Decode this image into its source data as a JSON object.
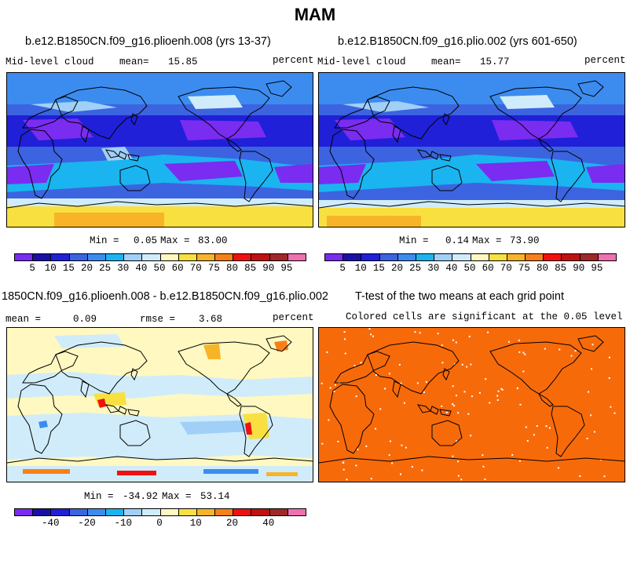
{
  "title": "MAM",
  "panels": [
    {
      "title": "b.e12.B1850CN.f09_g16.plioenh.008 (yrs 13-37)",
      "left_label": "Mid-level cloud",
      "mean_label": "mean=",
      "mean_value": "15.85",
      "units": "percent",
      "min_label": "Min =",
      "min_value": "0.05",
      "max_label": "Max =",
      "max_value": "83.00"
    },
    {
      "title": "b.e12.B1850CN.f09_g16.plio.002 (yrs 601-650)",
      "left_label": "Mid-level cloud",
      "mean_label": "mean=",
      "mean_value": "15.77",
      "units": "percent",
      "min_label": "Min =",
      "min_value": "0.14",
      "max_label": "Max =",
      "max_value": "73.90"
    },
    {
      "title": "1850CN.f09_g16.plioenh.008 - b.e12.B1850CN.f09_g16.plio.002",
      "mean_label": "mean =",
      "mean_value": "0.09",
      "rmse_label": "rmse =",
      "rmse_value": "3.68",
      "units": "percent",
      "min_label": "Min =",
      "min_value": "-34.92",
      "max_label": "Max =",
      "max_value": "53.14"
    },
    {
      "title": "T-test of the two means at each grid point",
      "subtitle": "Colored cells are significant at the 0.05 level"
    }
  ],
  "colorbar_abs": {
    "colors": [
      "#7a2cf0",
      "#1a10a8",
      "#2020d8",
      "#3c64e0",
      "#3c8cf0",
      "#1ab4f0",
      "#a0d0f8",
      "#d0ecfa",
      "#fff8c0",
      "#f8e040",
      "#f8b428",
      "#f88018",
      "#f01010",
      "#c01010",
      "#a02828",
      "#f070b0"
    ],
    "ticks": [
      "5",
      "10",
      "15",
      "20",
      "25",
      "30",
      "40",
      "50",
      "60",
      "70",
      "75",
      "80",
      "85",
      "90",
      "95"
    ]
  },
  "colorbar_diff": {
    "colors": [
      "#7a2cf0",
      "#1a10a8",
      "#2020d8",
      "#3c64e0",
      "#3c8cf0",
      "#1ab4f0",
      "#a0d0f8",
      "#d0ecfa",
      "#fff8c0",
      "#f8e040",
      "#f8b428",
      "#f88018",
      "#f01010",
      "#c01010",
      "#a02828",
      "#f070b0"
    ],
    "ticks": [
      "-40",
      "-20",
      "-10",
      "0",
      "10",
      "20",
      "40"
    ],
    "tick_positions": [
      2,
      4,
      6,
      8,
      10,
      12,
      14
    ]
  },
  "chart_data": [
    {
      "type": "heatmap",
      "title": "b.e12.B1850CN.f09_g16.plioenh.008 (yrs 13-37)",
      "variable": "Mid-level cloud",
      "units": "percent",
      "mean": 15.85,
      "min": 0.05,
      "max": 83.0,
      "contour_levels": [
        5,
        10,
        15,
        20,
        25,
        30,
        40,
        50,
        60,
        70,
        75,
        80,
        85,
        90,
        95
      ]
    },
    {
      "type": "heatmap",
      "title": "b.e12.B1850CN.f09_g16.plio.002 (yrs 601-650)",
      "variable": "Mid-level cloud",
      "units": "percent",
      "mean": 15.77,
      "min": 0.14,
      "max": 73.9,
      "contour_levels": [
        5,
        10,
        15,
        20,
        25,
        30,
        40,
        50,
        60,
        70,
        75,
        80,
        85,
        90,
        95
      ]
    },
    {
      "type": "heatmap",
      "title": "1850CN.f09_g16.plioenh.008 - b.e12.B1850CN.f09_g16.plio.002",
      "units": "percent",
      "mean": 0.09,
      "rmse": 3.68,
      "min": -34.92,
      "max": 53.14,
      "contour_levels": [
        -40,
        -20,
        -10,
        0,
        10,
        20,
        40
      ]
    },
    {
      "type": "heatmap",
      "title": "T-test of the two means at each grid point",
      "subtitle": "Colored cells are significant at the 0.05 level",
      "fill_color": "#f76a0a"
    }
  ]
}
